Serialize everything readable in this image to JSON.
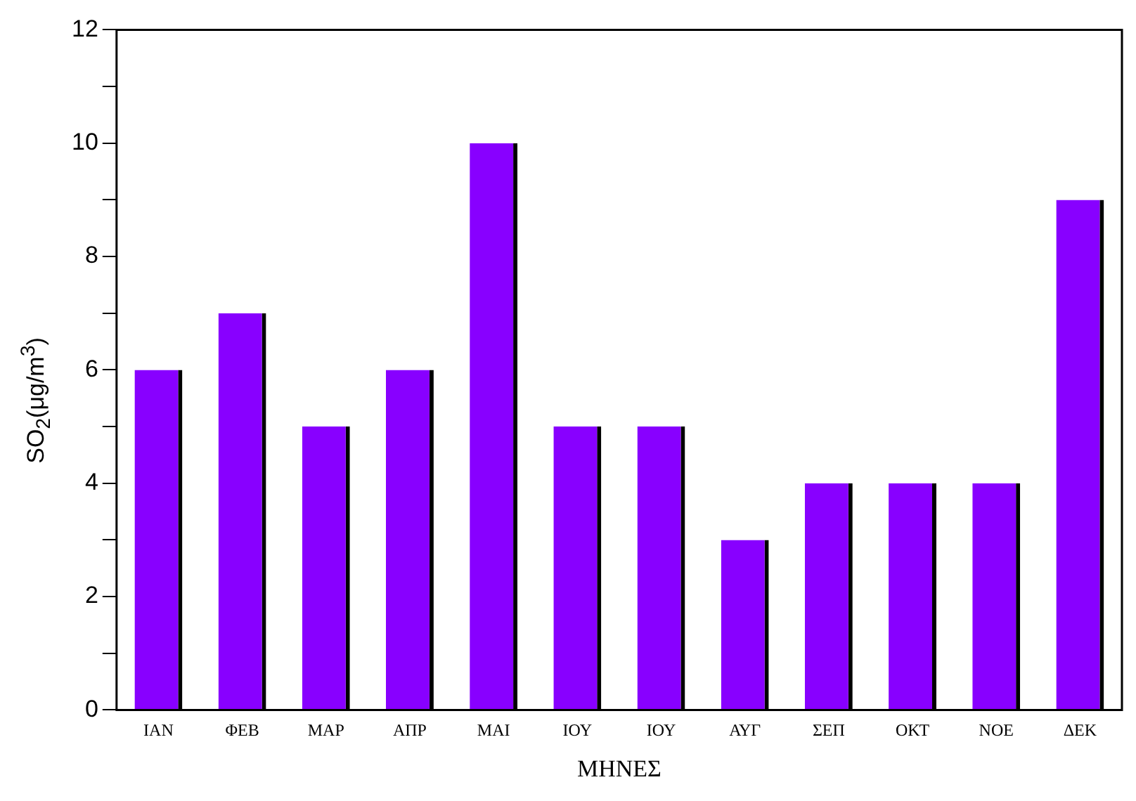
{
  "chart_data": {
    "type": "bar",
    "xlabel": "ΜΗΝΕΣ",
    "ylabel": "SO$_{2}$(μg/m$^{3}$)",
    "categories": [
      "ΙΑΝ",
      "ΦΕΒ",
      "ΜΑΡ",
      "ΑΠΡ",
      "ΜΑΙ",
      "ΙΟΥ",
      "ΙΟΥ",
      "ΑΥΓ",
      "ΣΕΠ",
      "ΟΚΤ",
      "ΝΟΕ",
      "ΔΕΚ"
    ],
    "values": [
      6,
      7,
      5,
      6,
      10,
      5,
      5,
      3,
      4,
      4,
      4,
      9
    ],
    "color": "#8800ff",
    "ylim": [
      0,
      12
    ],
    "yticks": [
      0,
      {
        "value": 1,
        "label": null
      },
      2,
      {
        "value": 3,
        "label": null
      },
      4,
      {
        "value": 5,
        "label": null
      },
      6,
      {
        "value": 7,
        "label": null
      },
      8,
      {
        "value": 9,
        "label": null
      },
      10,
      {
        "value": 11,
        "label": null
      },
      12
    ],
    "grid": false,
    "legend": false
  }
}
